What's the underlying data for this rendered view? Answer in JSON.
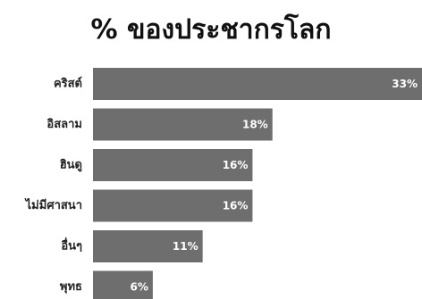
{
  "chart_data": {
    "type": "bar",
    "orientation": "horizontal",
    "title": "% ของประชากรโลก",
    "categories": [
      "คริสต์",
      "อิสลาม",
      "ฮินดู",
      "ไม่มีศาสนา",
      "อื่นๆ",
      "พุทธ"
    ],
    "values": [
      33,
      18,
      16,
      16,
      11,
      6
    ],
    "value_labels": [
      "33%",
      "18%",
      "16%",
      "16%",
      "11%",
      "6%"
    ],
    "xlim": [
      0,
      33
    ],
    "grid": false,
    "legend": "none",
    "bar_color": "#6e6e6e"
  }
}
